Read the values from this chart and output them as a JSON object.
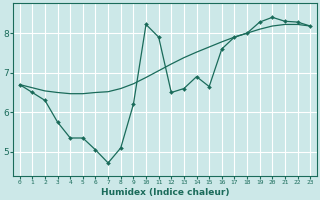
{
  "xlabel": "Humidex (Indice chaleur)",
  "ylabel": "",
  "bg_color": "#cce8e8",
  "grid_color": "#ffffff",
  "line_color": "#1a6b5a",
  "xlim": [
    -0.5,
    23.5
  ],
  "ylim": [
    4.4,
    8.75
  ],
  "xticks": [
    0,
    1,
    2,
    3,
    4,
    5,
    6,
    7,
    8,
    9,
    10,
    11,
    12,
    13,
    14,
    15,
    16,
    17,
    18,
    19,
    20,
    21,
    22,
    23
  ],
  "yticks": [
    5,
    6,
    7,
    8
  ],
  "line1_x": [
    0,
    1,
    2,
    3,
    4,
    5,
    6,
    7,
    8,
    9,
    10,
    11,
    12,
    13,
    14,
    15,
    16,
    17,
    18,
    19,
    20,
    21,
    22,
    23
  ],
  "line1_y": [
    6.7,
    6.62,
    6.54,
    6.5,
    6.47,
    6.47,
    6.5,
    6.52,
    6.6,
    6.72,
    6.88,
    7.05,
    7.22,
    7.38,
    7.52,
    7.65,
    7.78,
    7.9,
    8.0,
    8.1,
    8.18,
    8.22,
    8.22,
    8.18
  ],
  "line2_x": [
    0,
    1,
    2,
    3,
    4,
    5,
    6,
    7,
    8,
    9,
    10,
    11,
    12,
    13,
    14,
    15,
    16,
    17,
    18,
    19,
    20,
    21,
    22,
    23
  ],
  "line2_y": [
    6.7,
    6.5,
    6.3,
    5.75,
    5.35,
    5.35,
    5.05,
    4.72,
    5.1,
    6.2,
    8.22,
    7.9,
    6.5,
    6.6,
    6.9,
    6.65,
    7.6,
    7.9,
    8.0,
    8.28,
    8.4,
    8.3,
    8.28,
    8.18
  ]
}
